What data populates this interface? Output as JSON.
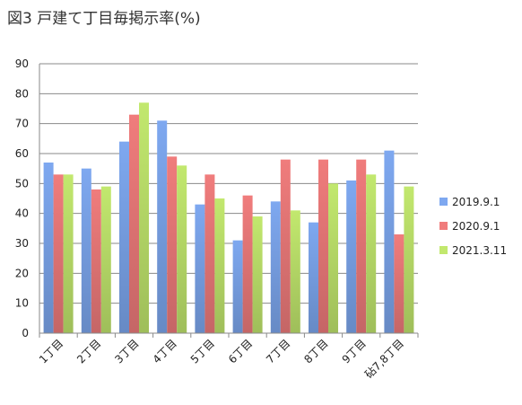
{
  "chart_data": {
    "type": "bar",
    "title": "図3 戸建て丁目毎掲示率(%)",
    "categories": [
      "1丁目",
      "2丁目",
      "3丁目",
      "4丁目",
      "5丁目",
      "6丁目",
      "7丁目",
      "8丁目",
      "9丁目",
      "砧7,8丁目"
    ],
    "series": [
      {
        "name": "2019.9.1",
        "values": [
          57,
          55,
          64,
          71,
          43,
          31,
          44,
          37,
          51,
          61
        ],
        "color": "#7ea8f0"
      },
      {
        "name": "2020.9.1",
        "values": [
          53,
          48,
          73,
          59,
          53,
          46,
          58,
          58,
          58,
          33
        ],
        "color": "#f07c7c"
      },
      {
        "name": "2021.3.11",
        "values": [
          53,
          49,
          77,
          56,
          45,
          39,
          41,
          50,
          53,
          49
        ],
        "color": "#c2e86e"
      }
    ],
    "ylim": [
      0,
      90
    ],
    "yticks": [
      0,
      10,
      20,
      30,
      40,
      50,
      60,
      70,
      80,
      90
    ],
    "grid": true,
    "legend_position": "right",
    "xlabel": "",
    "ylabel": ""
  }
}
